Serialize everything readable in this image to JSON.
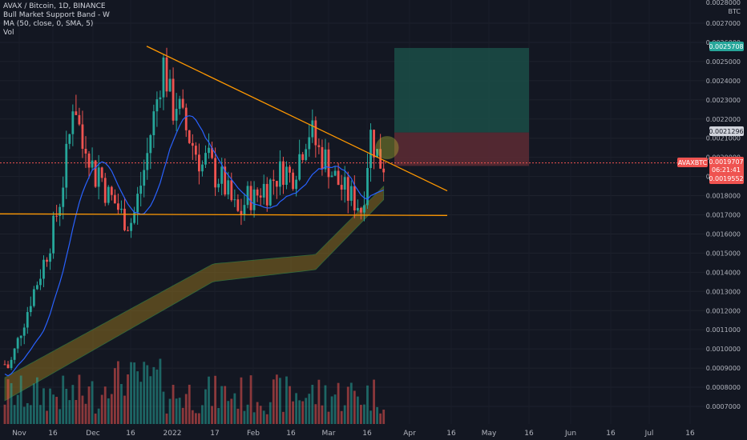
{
  "legend": {
    "symbol": "AVAX / Bitcoin, 1D, BINANCE",
    "indicator1": "Bull Market Support Band - W",
    "indicator2": "MA (50, close, 0, SMA, 5)",
    "indicator3": "Vol"
  },
  "axis": {
    "currency": "BTC",
    "ticks": [
      "0.0027000",
      "0.0026000",
      "0.0025000",
      "0.0024000",
      "0.0023000",
      "0.0022000",
      "0.0021000",
      "0.0020000",
      "0.0019000",
      "0.0018000",
      "0.0017000",
      "0.0016000",
      "0.0015000",
      "0.0014000",
      "0.0013000",
      "0.0012000",
      "0.0011000",
      "0.0010000",
      "0.0009000",
      "0.0008000",
      "0.0007000"
    ],
    "top_partial": "0.0028000"
  },
  "labels": {
    "target_price": "0.0025708",
    "stop_price": "0.0021296",
    "symbol_tag": "AVAXBTC",
    "last_price": "0.0019707",
    "countdown": "06:21:41",
    "entry_price": "0.0019552"
  },
  "colors": {
    "background": "#131722",
    "up": "#26a69a",
    "down": "#ef5350",
    "trendline": "#ff9800",
    "ma": "#2962ff",
    "band_fill": "#8b6d1f",
    "band_edge": "#4caf50",
    "target_zone": "#1b4a45",
    "stop_zone": "#5a2a33"
  },
  "chart_data": {
    "type": "candlestick",
    "x_labels": [
      "Nov",
      "16",
      "Dec",
      "16",
      "2022",
      "17",
      "Feb",
      "16",
      "Mar",
      "16",
      "Apr",
      "16",
      "May",
      "16",
      "Jun",
      "16",
      "Jul",
      "16"
    ],
    "y_range": [
      0.00065,
      0.00282
    ],
    "ohlc_close_estimate": [
      0.00092,
      0.0009,
      0.00097,
      0.00104,
      0.00112,
      0.00118,
      0.00126,
      0.00132,
      0.00138,
      0.00145,
      0.00152,
      0.0016,
      0.0017,
      0.0018,
      0.00195,
      0.0021,
      0.00235,
      0.0022,
      0.00205,
      0.0021,
      0.00198,
      0.0019,
      0.00195,
      0.00185,
      0.0018,
      0.00178,
      0.00175,
      0.0017,
      0.00168,
      0.00165,
      0.0017,
      0.0018,
      0.0019,
      0.002,
      0.00215,
      0.00225,
      0.0024,
      0.0025,
      0.00235,
      0.00225,
      0.0023,
      0.0022,
      0.00215,
      0.0021,
      0.00205,
      0.002,
      0.00195,
      0.002,
      0.00195,
      0.0019,
      0.0019,
      0.00185,
      0.0018,
      0.00175,
      0.0017,
      0.00172,
      0.00178,
      0.0018,
      0.00178,
      0.00182,
      0.00185,
      0.00183,
      0.00188,
      0.0019,
      0.00192,
      0.00195,
      0.0019,
      0.00192,
      0.00198,
      0.00205,
      0.00212,
      0.00215,
      0.00208,
      0.00203,
      0.002,
      0.00198,
      0.00192,
      0.00188,
      0.00185,
      0.00182,
      0.0018,
      0.00178,
      0.00176,
      0.00172,
      0.00195,
      0.00212,
      0.00205,
      0.00198,
      0.00197
    ],
    "trendline_descending": {
      "from": [
        "2021-12-24",
        0.00258
      ],
      "to": [
        "2022-04-01",
        0.001825
      ]
    },
    "support_line": 0.001705,
    "position": {
      "target": 0.0025708,
      "stop": 0.0021296,
      "entry": 0.0019552
    },
    "last_price": 0.0019707
  }
}
